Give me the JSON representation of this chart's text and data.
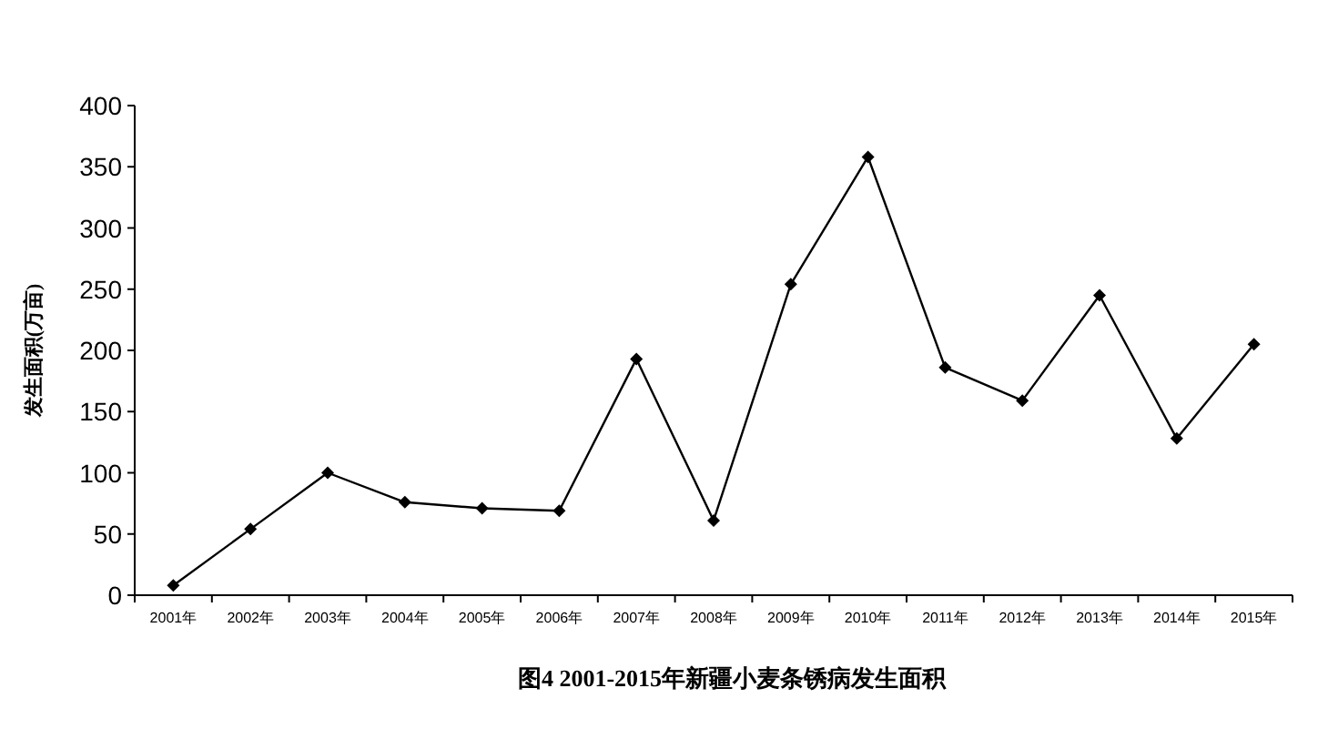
{
  "chart_data": {
    "type": "line",
    "title": "图4 2001-2015年新疆小麦条锈病发生面积",
    "ylabel": "发生面积(万亩)",
    "categories": [
      "2001年",
      "2002年",
      "2003年",
      "2004年",
      "2005年",
      "2006年",
      "2007年",
      "2008年",
      "2009年",
      "2010年",
      "2011年",
      "2012年",
      "2013年",
      "2014年",
      "2015年"
    ],
    "series": [
      {
        "color": "#000000",
        "values": [
          8,
          54,
          100,
          76,
          71,
          69,
          193,
          61,
          254,
          358,
          186,
          159,
          245,
          128,
          205
        ]
      }
    ],
    "ylim": [
      0,
      400
    ],
    "yticks": [
      0,
      50,
      100,
      150,
      200,
      250,
      300,
      350,
      400
    ],
    "marker": "diamond",
    "line_style": "solid"
  }
}
